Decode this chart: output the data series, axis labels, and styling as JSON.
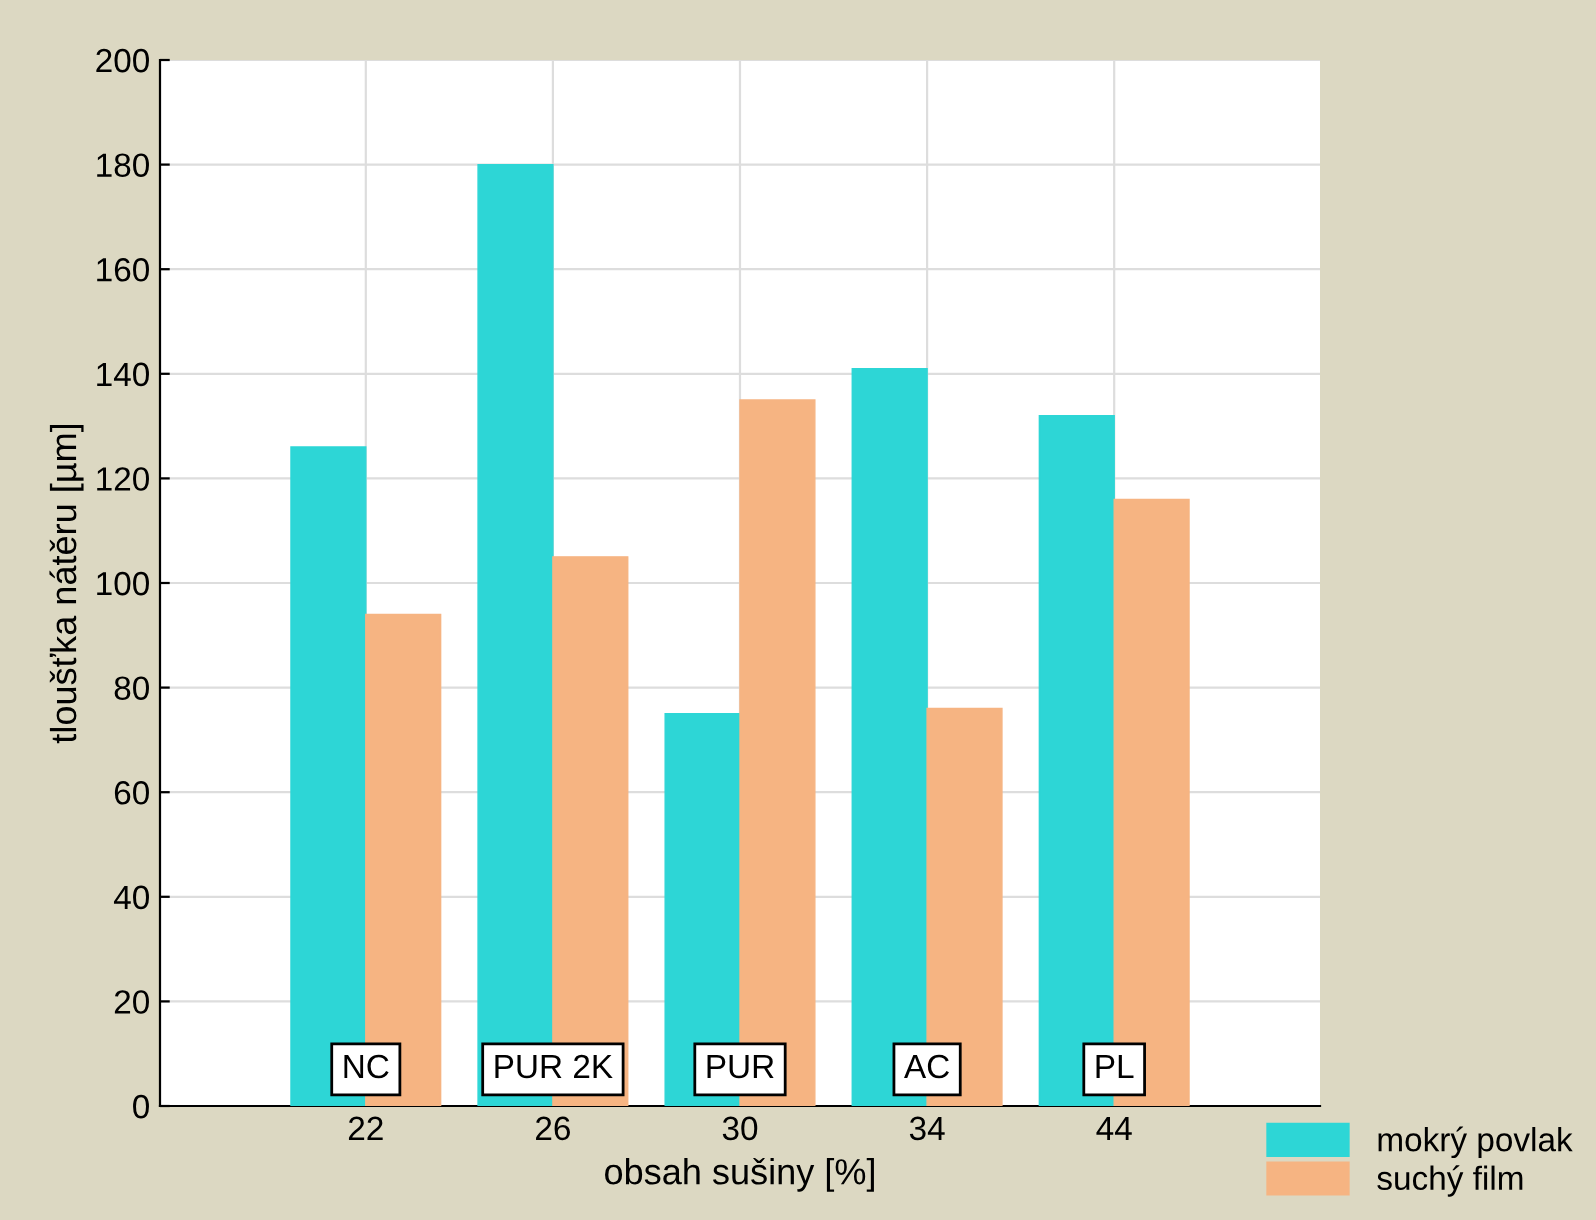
{
  "chart_data": {
    "type": "bar",
    "xlabel": "obsah sušiny [%]",
    "ylabel": "tloušťka nátěru [µm]",
    "categories": [
      "22",
      "26",
      "30",
      "34",
      "44"
    ],
    "series": [
      {
        "name": "mokrý povlak",
        "color": "#2dd6d6",
        "values": [
          126,
          180,
          75,
          141,
          132
        ]
      },
      {
        "name": "suchý film",
        "color": "#f6b482",
        "values": [
          94,
          105,
          135,
          76,
          116
        ]
      }
    ],
    "ylim": [
      0,
      200
    ],
    "yticks": [
      0,
      20,
      40,
      60,
      80,
      100,
      120,
      140,
      160,
      180,
      200
    ],
    "grid": true,
    "legend": "bottom right",
    "annotations": [
      {
        "text": "NC",
        "x": "22",
        "y": 7
      },
      {
        "text": "PUR 2K",
        "x": "26",
        "y": 7
      },
      {
        "text": "PUR",
        "x": "30",
        "y": 7
      },
      {
        "text": "AC",
        "x": "34",
        "y": 7
      },
      {
        "text": "PL",
        "x": "44",
        "y": 7
      }
    ]
  }
}
